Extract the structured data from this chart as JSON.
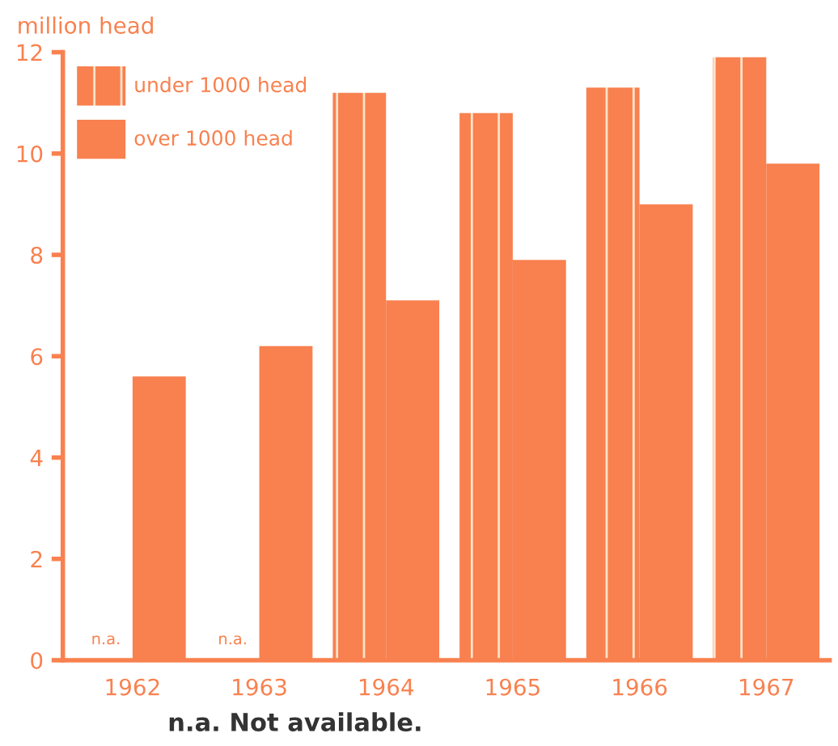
{
  "chart_data": {
    "type": "bar",
    "ylabel": "million head",
    "categories": [
      "1962",
      "1963",
      "1964",
      "1965",
      "1966",
      "1967"
    ],
    "series": [
      {
        "name": "under 1000 head",
        "color": "#f8814f",
        "values": [
          null,
          null,
          11.2,
          10.8,
          11.3,
          11.9
        ]
      },
      {
        "name": "over 1000 head",
        "color": "#f8814f",
        "values": [
          5.6,
          6.2,
          7.1,
          7.9,
          9.0,
          9.8
        ]
      }
    ],
    "ylim": [
      0,
      12
    ],
    "yticks": [
      0,
      2,
      4,
      6,
      8,
      10,
      12
    ],
    "grid": false,
    "legend": "top left",
    "annotations": [
      {
        "text": "n.a.",
        "x": "1962",
        "y": 0
      },
      {
        "text": "n.a.",
        "x": "1963",
        "y": 0
      },
      "n.a. Not available."
    ]
  }
}
